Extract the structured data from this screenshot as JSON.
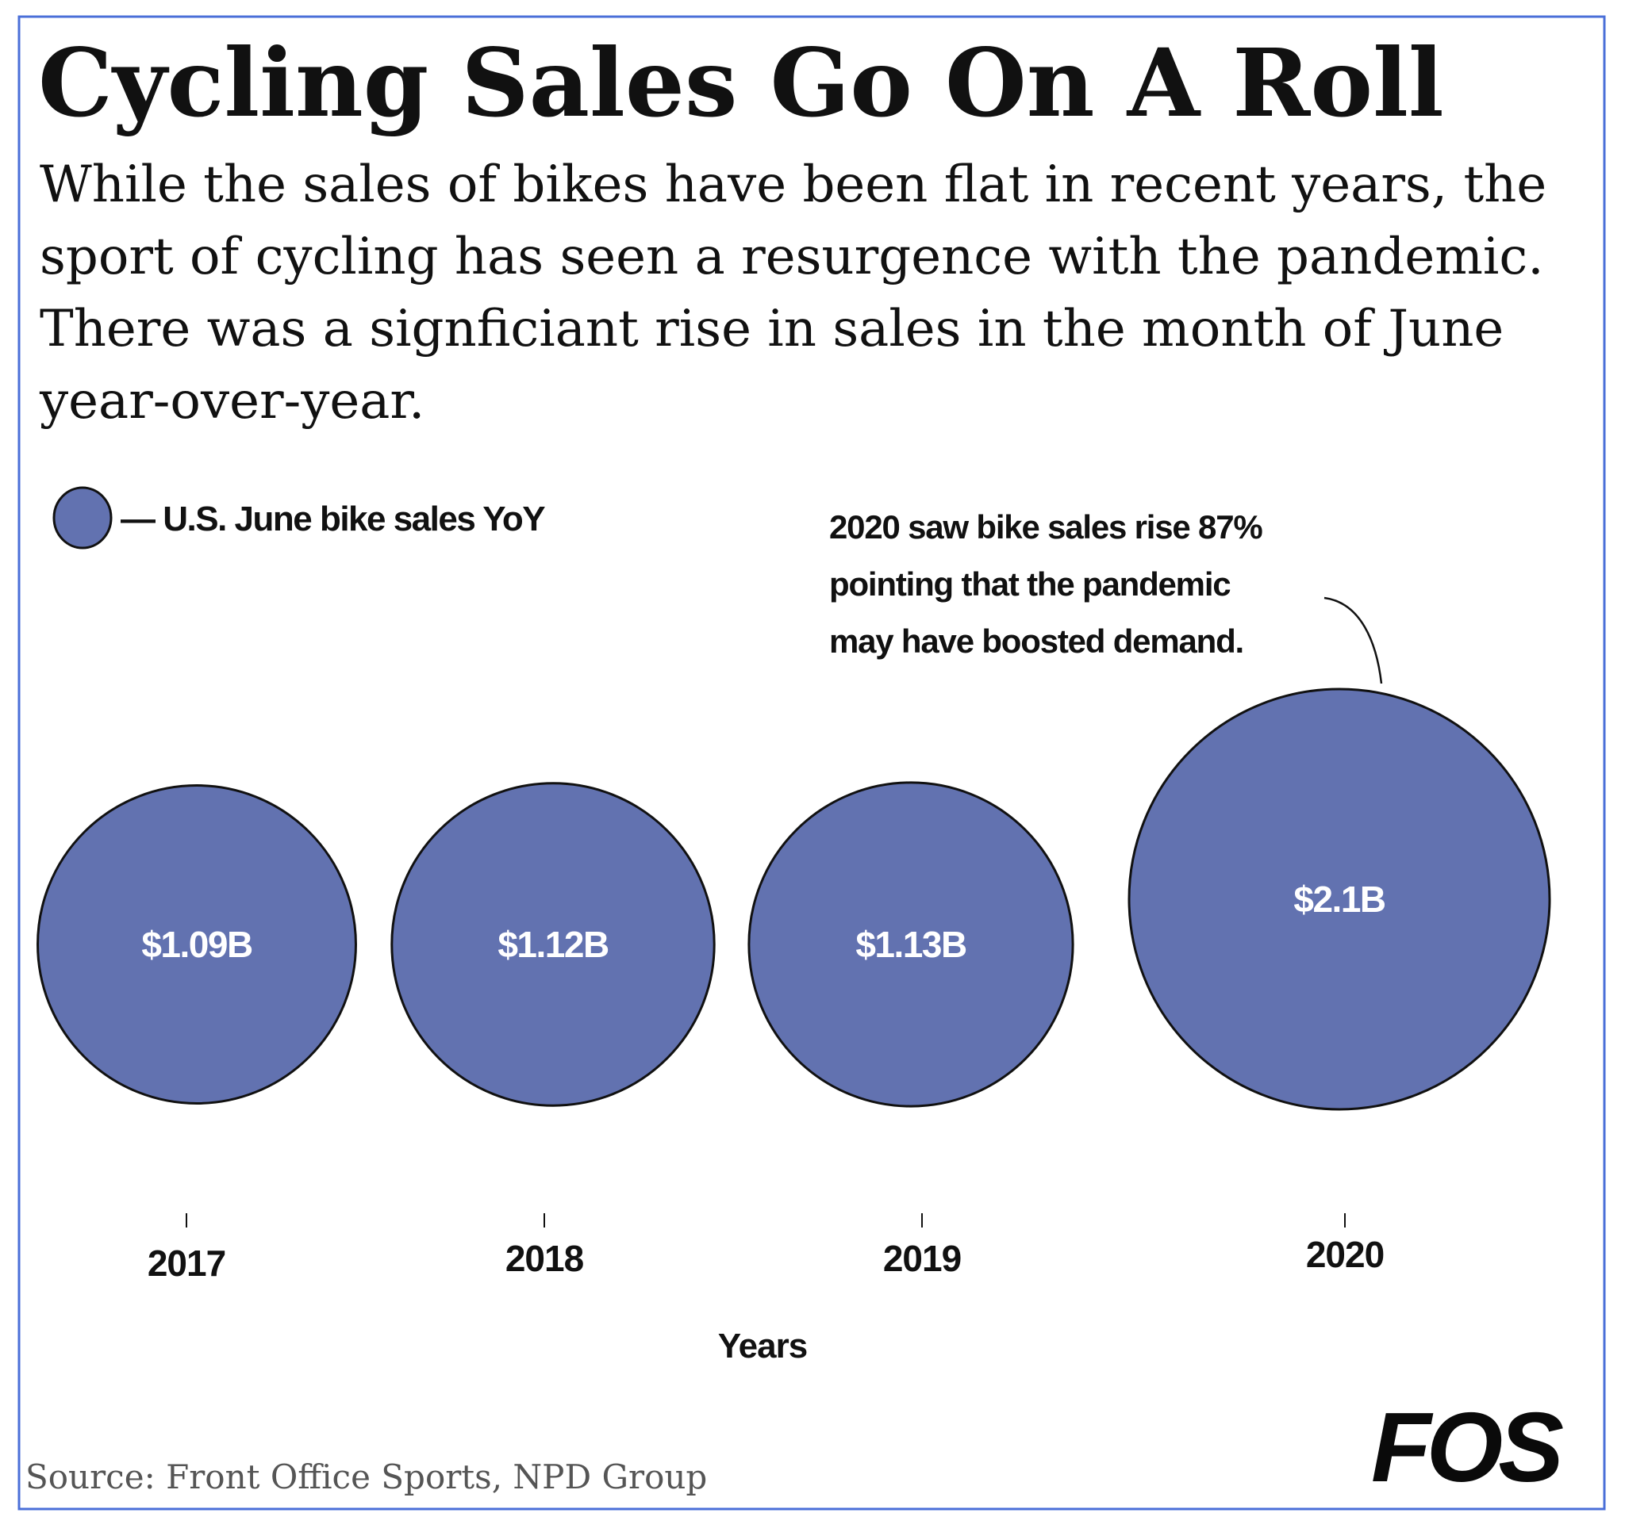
{
  "title": "Cycling Sales Go On A Roll",
  "subtitle_lines": [
    "While the sales of bikes have been flat in recent years, the",
    "sport of cycling has seen a resurgence with the pandemic.",
    "There was a signficiant rise in sales in the month of June",
    "year-over-year."
  ],
  "legend": {
    "label": "— U.S. June bike sales YoY",
    "placement": "top-left"
  },
  "annotation_lines": [
    "2020 saw bike sales rise 87%",
    "pointing that the pandemic",
    "may have boosted demand."
  ],
  "source": "Source: Front Office Sports, NPD Group",
  "logo": "FOS",
  "colors": {
    "bubble": "#6272b0",
    "border": "#4a6fd8",
    "text": "#111111",
    "source": "#555555"
  },
  "chart_data": {
    "type": "bubble",
    "categories": [
      "2017",
      "2018",
      "2019",
      "2020"
    ],
    "values": [
      1.09,
      1.12,
      1.13,
      2.1
    ],
    "value_labels": [
      "$1.09B",
      "$1.12B",
      "$1.13B",
      "$2.1B"
    ],
    "unit": "billion USD",
    "series": [
      {
        "name": "U.S. June bike sales YoY",
        "values": [
          1.09,
          1.12,
          1.13,
          2.1
        ]
      }
    ],
    "xlabel": "Years",
    "ylabel": "",
    "grid": false
  }
}
